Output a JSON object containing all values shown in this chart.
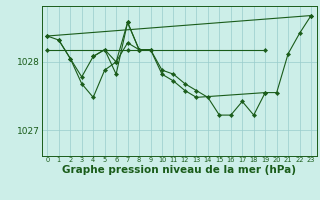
{
  "bg_color": "#cceee8",
  "line_color": "#1a5c1a",
  "grid_color": "#99cccc",
  "ylabel_ticks": [
    1027,
    1028
  ],
  "xticks": [
    0,
    1,
    2,
    3,
    4,
    5,
    6,
    7,
    8,
    9,
    10,
    11,
    12,
    13,
    14,
    15,
    16,
    17,
    18,
    19,
    20,
    21,
    22,
    23
  ],
  "xlabel": "Graphe pression niveau de la mer (hPa)",
  "xlabel_fontsize": 7.5,
  "ylim": [
    1026.62,
    1028.82
  ],
  "xlim": [
    -0.5,
    23.5
  ],
  "series": [
    {
      "x": [
        0,
        1,
        2,
        3,
        4,
        5,
        6,
        7,
        8,
        9,
        10,
        11,
        12,
        13,
        14,
        15,
        16,
        17,
        18,
        19,
        20,
        21,
        22,
        23
      ],
      "y": [
        1028.38,
        1028.32,
        1028.05,
        1027.78,
        1028.08,
        1028.18,
        1027.82,
        1028.58,
        1028.18,
        1028.18,
        1027.88,
        1027.82,
        1027.68,
        1027.58,
        1027.48,
        1027.22,
        1027.22,
        1027.42,
        1027.22,
        1027.55,
        1027.55,
        1028.12,
        1028.42,
        1028.68
      ]
    },
    {
      "x": [
        0,
        7,
        19
      ],
      "y": [
        1028.18,
        1028.18,
        1028.18
      ]
    },
    {
      "x": [
        0,
        23
      ],
      "y": [
        1028.38,
        1028.68
      ]
    },
    {
      "x": [
        1,
        2,
        3,
        4,
        5,
        6,
        7,
        8
      ],
      "y": [
        1028.32,
        1028.05,
        1027.68,
        1027.48,
        1027.88,
        1028.0,
        1028.58,
        1028.18
      ]
    },
    {
      "x": [
        4,
        5,
        6,
        7,
        8,
        9,
        10,
        11,
        12,
        13,
        19
      ],
      "y": [
        1028.08,
        1028.18,
        1028.0,
        1028.28,
        1028.18,
        1028.18,
        1027.82,
        1027.72,
        1027.58,
        1027.48,
        1027.55
      ]
    }
  ]
}
